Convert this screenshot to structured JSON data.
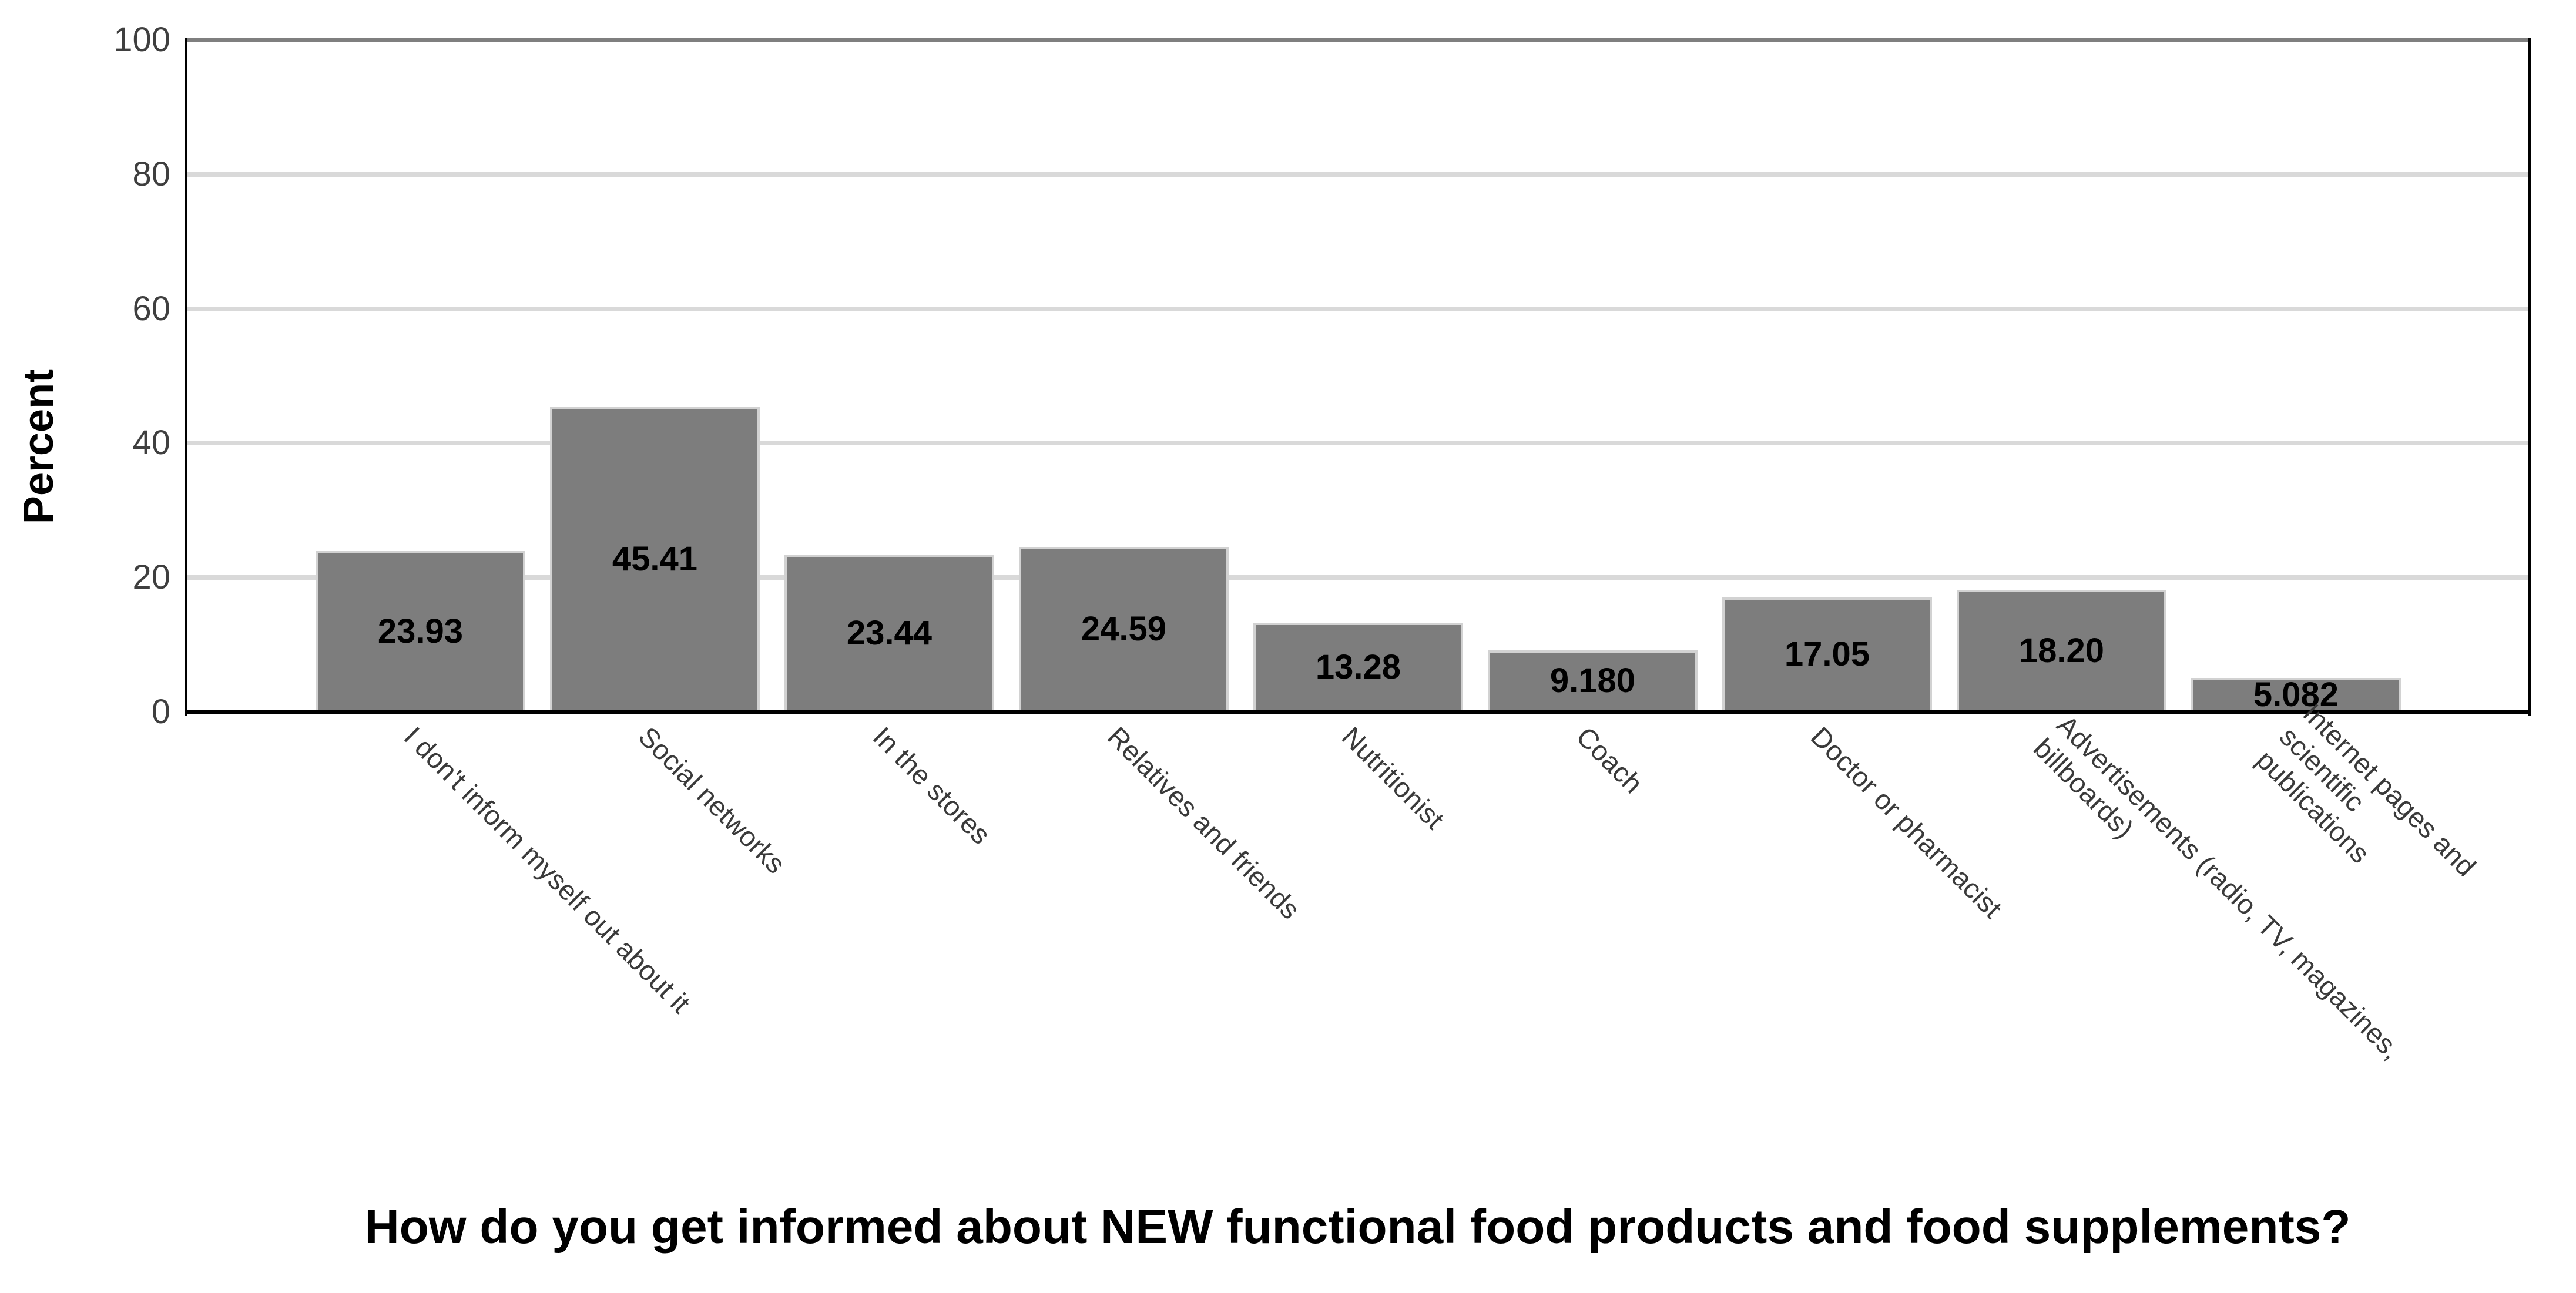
{
  "chart_data": {
    "type": "bar",
    "title_bottom": "How do you get informed about NEW functional food products and food supplements?",
    "ylabel": "Percent",
    "ylim": [
      0,
      100
    ],
    "yticks": [
      0,
      20,
      40,
      60,
      80,
      100
    ],
    "grid": "horizontal gridlines at 20, 40, 60, 80",
    "legend_position": "none",
    "bar_color": "#7d7d7d",
    "bar_edge_color": "#d2d2d2",
    "categories": [
      "I don't inform myself out about it",
      "Social networks",
      "In the stores",
      "Relatives and friends",
      "Nutritionist",
      "Coach",
      "Doctor or pharmacist",
      "Advertisements (radio, TV, magazines, billboards)",
      "Internet pages and scientific publications"
    ],
    "category_label_lines": [
      [
        "I don't inform myself out about it"
      ],
      [
        "Social networks"
      ],
      [
        "In the stores"
      ],
      [
        "Relatives and friends"
      ],
      [
        "Nutritionist"
      ],
      [
        "Coach"
      ],
      [
        "Doctor or pharmacist"
      ],
      [
        "Advertisements (radio, TV, magazines,",
        "billboards)"
      ],
      [
        "Internet pages and",
        "scientific",
        "publications"
      ]
    ],
    "values": [
      23.93,
      45.41,
      23.44,
      24.59,
      13.28,
      9.18,
      17.05,
      18.2,
      5.082
    ],
    "value_labels": [
      "23.93",
      "45.41",
      "23.44",
      "24.59",
      "13.28",
      "9.180",
      "17.05",
      "18.20",
      "5.082"
    ]
  }
}
